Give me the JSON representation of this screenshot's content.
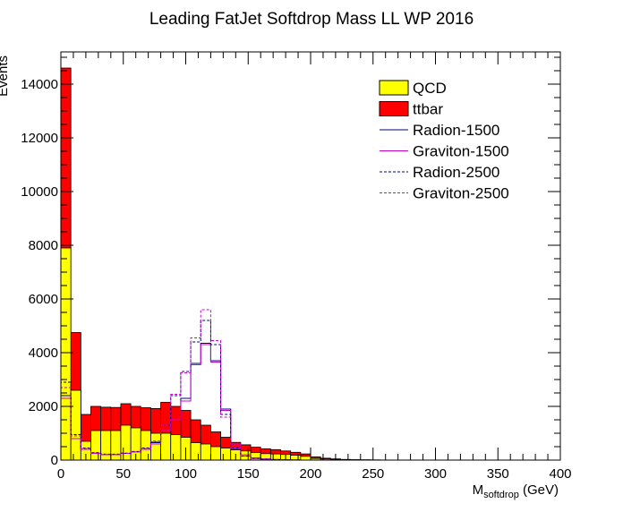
{
  "chart_data": {
    "type": "histogram",
    "title": "Leading FatJet Softdrop Mass LL WP 2016",
    "xlabel_main": "M",
    "xlabel_sub": "softdrop",
    "xlabel_unit": " (GeV)",
    "ylabel": "Events",
    "xlim": [
      0,
      400
    ],
    "ylim": [
      0,
      15200
    ],
    "bin_width": 8,
    "x_ticks": [
      0,
      50,
      100,
      150,
      200,
      250,
      300,
      350,
      400
    ],
    "y_ticks": [
      0,
      2000,
      4000,
      6000,
      8000,
      10000,
      12000,
      14000
    ],
    "x_tick_labels": [
      "0",
      "50",
      "100",
      "150",
      "200",
      "250",
      "300",
      "350",
      "400"
    ],
    "y_tick_labels": [
      "0",
      "2000",
      "4000",
      "6000",
      "8000",
      "10000",
      "12000",
      "14000"
    ],
    "legend_position": "top-right",
    "stacked": [
      {
        "name": "QCD",
        "color": "#ffff00",
        "values": [
          7900,
          2600,
          700,
          1100,
          1100,
          1100,
          1300,
          1200,
          1100,
          1000,
          1000,
          950,
          850,
          650,
          600,
          500,
          450,
          380,
          340,
          280,
          240,
          230,
          210,
          180,
          140,
          60,
          40,
          30,
          15,
          10,
          8,
          5,
          3,
          2,
          2,
          1,
          1,
          1,
          1,
          1,
          1,
          1,
          1,
          1,
          1,
          1,
          1,
          1,
          1,
          1
        ]
      },
      {
        "name": "ttbar",
        "color": "#ff0000",
        "values": [
          6700,
          2150,
          1000,
          900,
          870,
          860,
          800,
          800,
          850,
          920,
          1150,
          1050,
          1000,
          850,
          700,
          550,
          400,
          280,
          230,
          200,
          180,
          160,
          130,
          110,
          90,
          60,
          30,
          15,
          10,
          5,
          3,
          2,
          1,
          1,
          1,
          0,
          0,
          0,
          0,
          0,
          0,
          0,
          0,
          0,
          0,
          0,
          0,
          0,
          0,
          0
        ]
      }
    ],
    "overlays": [
      {
        "name": "Radion-1500",
        "color": "#000080",
        "dash": "solid",
        "values": [
          2400,
          800,
          400,
          250,
          200,
          200,
          250,
          300,
          400,
          650,
          1100,
          1500,
          2300,
          3600,
          4350,
          3700,
          1900,
          600,
          200,
          80,
          40,
          20,
          10,
          5,
          2,
          1,
          1,
          0,
          0,
          0,
          0,
          0,
          0,
          0,
          0,
          0,
          0,
          0,
          0,
          0,
          0,
          0,
          0,
          0,
          0,
          0,
          0,
          0,
          0,
          0
        ]
      },
      {
        "name": "Graviton-1500",
        "color": "#cc00cc",
        "dash": "solid",
        "values": [
          2300,
          800,
          400,
          250,
          200,
          200,
          250,
          300,
          400,
          600,
          1100,
          1500,
          2200,
          3550,
          4300,
          3650,
          1850,
          600,
          200,
          80,
          40,
          20,
          10,
          5,
          2,
          1,
          1,
          0,
          0,
          0,
          0,
          0,
          0,
          0,
          0,
          0,
          0,
          0,
          0,
          0,
          0,
          0,
          0,
          0,
          0,
          0,
          0,
          0,
          0,
          0
        ]
      },
      {
        "name": "Radion-2500",
        "color": "#000080",
        "dash": "dashed",
        "values": [
          2900,
          950,
          450,
          280,
          220,
          220,
          260,
          320,
          450,
          700,
          1300,
          2400,
          3300,
          4400,
          5200,
          4300,
          1700,
          450,
          150,
          60,
          30,
          15,
          8,
          4,
          2,
          1,
          1,
          0,
          0,
          0,
          0,
          0,
          0,
          0,
          0,
          0,
          0,
          0,
          0,
          0,
          0,
          0,
          0,
          0,
          0,
          0,
          0,
          0,
          0,
          0
        ]
      },
      {
        "name": "Graviton-2500",
        "color": "#cc00cc",
        "dash": "dashed",
        "values": [
          2700,
          900,
          430,
          260,
          210,
          210,
          250,
          310,
          430,
          680,
          1300,
          2450,
          3250,
          4550,
          5600,
          4450,
          1600,
          450,
          150,
          60,
          30,
          15,
          8,
          4,
          2,
          1,
          1,
          0,
          0,
          0,
          0,
          0,
          0,
          0,
          0,
          0,
          0,
          0,
          0,
          0,
          0,
          0,
          0,
          0,
          0,
          0,
          0,
          0,
          0,
          0
        ]
      }
    ]
  }
}
